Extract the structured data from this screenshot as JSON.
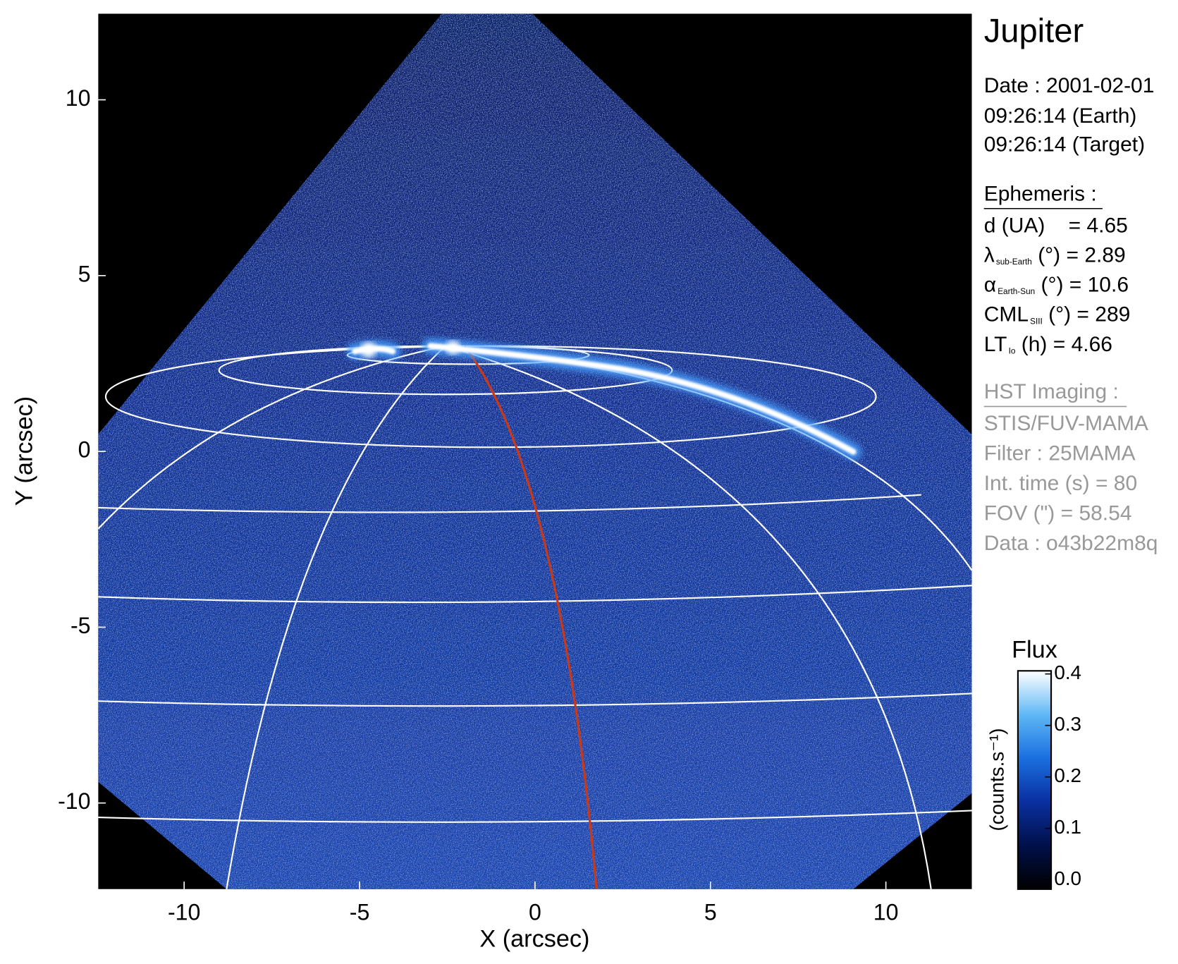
{
  "chart_data": {
    "type": "image",
    "title": "Jupiter",
    "xlabel": "X (arcsec)",
    "ylabel": "Y (arcsec)",
    "xlim": [
      -12.45,
      12.45
    ],
    "ylim": [
      -12.45,
      12.45
    ],
    "xticks": [
      -10,
      -5,
      0,
      5,
      10
    ],
    "yticks": [
      -10,
      -5,
      0,
      5,
      10
    ],
    "colormap": [
      "#000000",
      "#00104a",
      "#0a2fa0",
      "#1a6fe0",
      "#5fb8f5",
      "#ffffff"
    ],
    "colorbar": {
      "title": "Flux",
      "label": "(counts.s⁻¹)",
      "lim": [
        -0.018,
        0.406
      ],
      "ticks": [
        {
          "value": 0,
          "label": "0.0"
        },
        0.1,
        0.2,
        0.3,
        0.4
      ]
    }
  },
  "info": {
    "date": "Date : 2001-02-01",
    "time_earth": "09:26:14 (Earth)",
    "time_target": "09:26:14 (Target)",
    "ephemeris": {
      "heading": "Ephemeris :",
      "lines": [
        [
          {
            "t": "d (UA)    = 4.65"
          }
        ],
        [
          {
            "t": "λ"
          },
          {
            "sub": "sub-Earth"
          },
          {
            "t": " (°) = 2.89"
          }
        ],
        [
          {
            "t": "α"
          },
          {
            "sub": "Earth-Sun"
          },
          {
            "t": " (°) = 10.6"
          }
        ],
        [
          {
            "t": "CML"
          },
          {
            "sub": "SIII"
          },
          {
            "t": " (°) = 289"
          }
        ],
        [
          {
            "t": "LT"
          },
          {
            "sub": "Io"
          },
          {
            "t": " (h) = 4.66"
          }
        ]
      ]
    },
    "instrument": {
      "heading": "HST Imaging :",
      "lines": [
        "STIS/FUV-MAMA",
        "Filter : 25MAMA",
        "Int. time (s) = 80",
        "FOV (\") = 58.54",
        "Data : o43b22m8q"
      ]
    }
  }
}
